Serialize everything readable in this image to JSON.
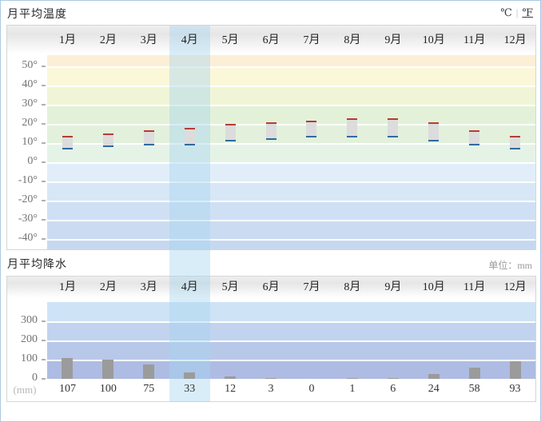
{
  "widget": {
    "highlighted_month": "4月",
    "highlighted_month_index": 3
  },
  "months": [
    "1月",
    "2月",
    "3月",
    "4月",
    "5月",
    "6月",
    "7月",
    "8月",
    "9月",
    "10月",
    "11月",
    "12月"
  ],
  "temperature": {
    "title": "月平均温度",
    "unit_celsius": "℃",
    "unit_divider": "|",
    "unit_fahrenheit": "℉",
    "y_ticks": [
      "50°",
      "40°",
      "30°",
      "20°",
      "10°",
      "0°",
      "-10°",
      "-20°",
      "-30°",
      "-40°"
    ],
    "band_colors": [
      "#fcefd6",
      "#fbf7d9",
      "#f0f5d7",
      "#e4f1d9",
      "#e2f0dc",
      "#e5f3e7",
      "#e1eef9",
      "#d7e7f6",
      "#d0e0f4",
      "#cbdcf2",
      "#c6d8f0"
    ],
    "bar_fill": "#dcdcdc",
    "max_color": "#b73c33",
    "min_color": "#31699f"
  },
  "precipitation": {
    "title": "月平均降水",
    "unit_label": "单位：mm",
    "y_ticks": [
      "300",
      "200",
      "100",
      "0"
    ],
    "y_unit": "(mm)",
    "band_colors": [
      "#cfe3f6",
      "#c2d3ef",
      "#b8c8e9",
      "#aebce3"
    ],
    "bar_color": "#9b9b9b"
  },
  "chart_data": [
    {
      "type": "bar",
      "title": "月平均温度",
      "subtitle": "floating range bars: monthly max (red cap) to min (blue cap)",
      "categories": [
        "1月",
        "2月",
        "3月",
        "4月",
        "5月",
        "6月",
        "7月",
        "8月",
        "9月",
        "10月",
        "11月",
        "12月"
      ],
      "series": [
        {
          "name": "max_temp",
          "values": [
            13,
            14,
            16,
            17,
            19,
            20,
            21,
            22,
            22,
            20,
            16,
            13
          ]
        },
        {
          "name": "min_temp",
          "values": [
            6,
            7,
            8,
            8,
            10,
            11,
            12,
            12,
            12,
            10,
            8,
            6
          ]
        }
      ],
      "ylabel": "℃",
      "y_ticks": [
        50,
        40,
        30,
        20,
        10,
        0,
        -10,
        -20,
        -30,
        -40
      ],
      "ylim": [
        -45,
        56
      ],
      "grid": true,
      "legend_position": "none",
      "highlighted_category": "4月"
    },
    {
      "type": "bar",
      "title": "月平均降水",
      "categories": [
        "1月",
        "2月",
        "3月",
        "4月",
        "5月",
        "6月",
        "7月",
        "8月",
        "9月",
        "10月",
        "11月",
        "12月"
      ],
      "values": [
        107,
        100,
        75,
        33,
        12,
        3,
        0,
        1,
        6,
        24,
        58,
        93
      ],
      "ylabel": "(mm)",
      "unit": "mm",
      "y_ticks": [
        300,
        200,
        100,
        0
      ],
      "ylim": [
        0,
        400
      ],
      "grid": true,
      "legend_position": "none",
      "highlighted_category": "4月"
    }
  ]
}
